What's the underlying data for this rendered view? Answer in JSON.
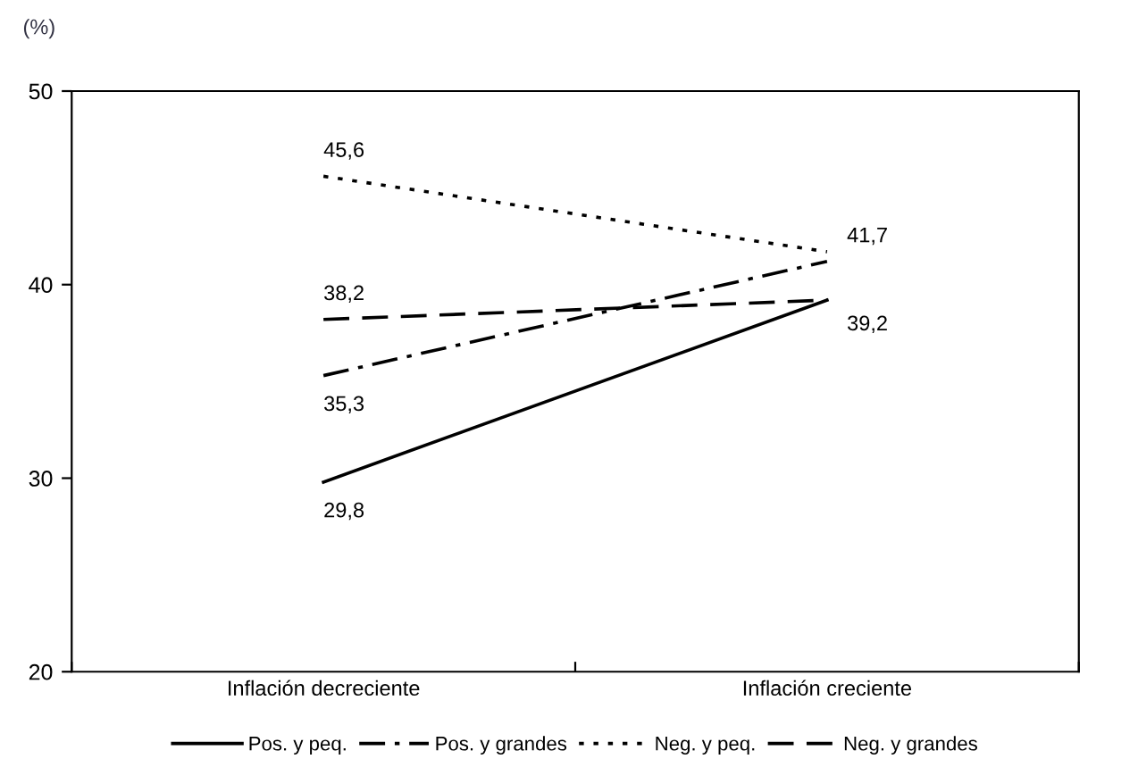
{
  "chart_data": {
    "type": "line",
    "ylabel": "(%)",
    "categories": [
      "Inflación decreciente",
      "Inflación creciente"
    ],
    "series": [
      {
        "name": "Pos. y peq.",
        "color": "#000000",
        "line_style": "solid",
        "values": [
          29.8,
          39.2
        ],
        "value_labels": [
          "29,8",
          "39,2"
        ]
      },
      {
        "name": "Pos. y grandes",
        "color": "#000000",
        "line_style": "dashdot",
        "values": [
          35.3,
          41.2
        ],
        "value_labels": [
          "35,3",
          null
        ]
      },
      {
        "name": "Neg. y peq.",
        "color": "#000000",
        "line_style": "dotted",
        "values": [
          45.6,
          41.7
        ],
        "value_labels": [
          "45,6",
          "41,7"
        ]
      },
      {
        "name": "Neg. y grandes",
        "color": "#000000",
        "line_style": "dashed",
        "values": [
          38.2,
          39.2
        ],
        "value_labels": [
          "38,2",
          null
        ]
      }
    ],
    "ylim": [
      20,
      50
    ],
    "yticks": [
      20,
      30,
      40,
      50
    ],
    "grid": false,
    "legend": "bottom",
    "marker": "none"
  }
}
